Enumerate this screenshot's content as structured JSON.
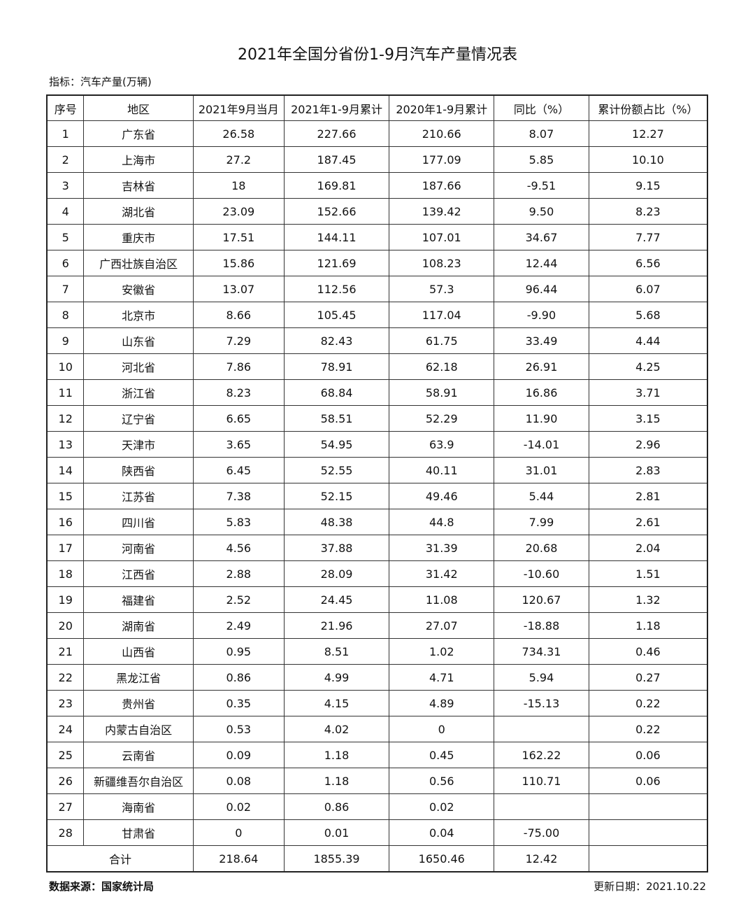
{
  "title": "2021年全国分省份1-9月汽车产量情况表",
  "indicator": "指标：汽车产量(万辆)",
  "table": {
    "headers": [
      "序号",
      "地区",
      "2021年9月当月",
      "2021年1-9月累计",
      "2020年1-9月累计",
      "同比（%）",
      "累计份额占比（%）"
    ],
    "rows": [
      [
        "1",
        "广东省",
        "26.58",
        "227.66",
        "210.66",
        "8.07",
        "12.27"
      ],
      [
        "2",
        "上海市",
        "27.2",
        "187.45",
        "177.09",
        "5.85",
        "10.10"
      ],
      [
        "3",
        "吉林省",
        "18",
        "169.81",
        "187.66",
        "-9.51",
        "9.15"
      ],
      [
        "4",
        "湖北省",
        "23.09",
        "152.66",
        "139.42",
        "9.50",
        "8.23"
      ],
      [
        "5",
        "重庆市",
        "17.51",
        "144.11",
        "107.01",
        "34.67",
        "7.77"
      ],
      [
        "6",
        "广西壮族自治区",
        "15.86",
        "121.69",
        "108.23",
        "12.44",
        "6.56"
      ],
      [
        "7",
        "安徽省",
        "13.07",
        "112.56",
        "57.3",
        "96.44",
        "6.07"
      ],
      [
        "8",
        "北京市",
        "8.66",
        "105.45",
        "117.04",
        "-9.90",
        "5.68"
      ],
      [
        "9",
        "山东省",
        "7.29",
        "82.43",
        "61.75",
        "33.49",
        "4.44"
      ],
      [
        "10",
        "河北省",
        "7.86",
        "78.91",
        "62.18",
        "26.91",
        "4.25"
      ],
      [
        "11",
        "浙江省",
        "8.23",
        "68.84",
        "58.91",
        "16.86",
        "3.71"
      ],
      [
        "12",
        "辽宁省",
        "6.65",
        "58.51",
        "52.29",
        "11.90",
        "3.15"
      ],
      [
        "13",
        "天津市",
        "3.65",
        "54.95",
        "63.9",
        "-14.01",
        "2.96"
      ],
      [
        "14",
        "陕西省",
        "6.45",
        "52.55",
        "40.11",
        "31.01",
        "2.83"
      ],
      [
        "15",
        "江苏省",
        "7.38",
        "52.15",
        "49.46",
        "5.44",
        "2.81"
      ],
      [
        "16",
        "四川省",
        "5.83",
        "48.38",
        "44.8",
        "7.99",
        "2.61"
      ],
      [
        "17",
        "河南省",
        "4.56",
        "37.88",
        "31.39",
        "20.68",
        "2.04"
      ],
      [
        "18",
        "江西省",
        "2.88",
        "28.09",
        "31.42",
        "-10.60",
        "1.51"
      ],
      [
        "19",
        "福建省",
        "2.52",
        "24.45",
        "11.08",
        "120.67",
        "1.32"
      ],
      [
        "20",
        "湖南省",
        "2.49",
        "21.96",
        "27.07",
        "-18.88",
        "1.18"
      ],
      [
        "21",
        "山西省",
        "0.95",
        "8.51",
        "1.02",
        "734.31",
        "0.46"
      ],
      [
        "22",
        "黑龙江省",
        "0.86",
        "4.99",
        "4.71",
        "5.94",
        "0.27"
      ],
      [
        "23",
        "贵州省",
        "0.35",
        "4.15",
        "4.89",
        "-15.13",
        "0.22"
      ],
      [
        "24",
        "内蒙古自治区",
        "0.53",
        "4.02",
        "0",
        "",
        "0.22"
      ],
      [
        "25",
        "云南省",
        "0.09",
        "1.18",
        "0.45",
        "162.22",
        "0.06"
      ],
      [
        "26",
        "新疆维吾尔自治区",
        "0.08",
        "1.18",
        "0.56",
        "110.71",
        "0.06"
      ],
      [
        "27",
        "海南省",
        "0.02",
        "0.86",
        "0.02",
        "",
        ""
      ],
      [
        "28",
        "甘肃省",
        "0",
        "0.01",
        "0.04",
        "-75.00",
        ""
      ]
    ],
    "total": [
      "合计",
      "218.64",
      "1855.39",
      "1650.46",
      "12.42",
      ""
    ]
  },
  "footer": {
    "source": "数据来源：国家统计局",
    "updated": "更新日期：2021.10.22"
  }
}
